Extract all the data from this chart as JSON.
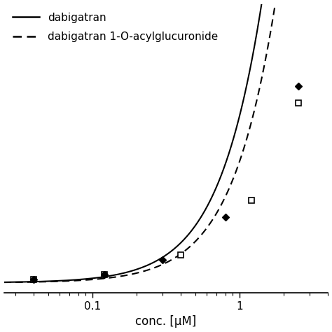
{
  "title": "",
  "xlabel": "conc. [μM]",
  "ylabel": "",
  "legend_solid": "dabigatran",
  "legend_dashed": "dabigatran 1-O-acylglucuronide",
  "Vmax_solid": 25.0,
  "Km_solid": 18.0,
  "n_solid": 1.6,
  "Vmax_dashed": 22.0,
  "Km_dashed": 22.0,
  "n_dashed": 1.6,
  "solid_marker_x": [
    0.04,
    0.12,
    0.3,
    0.8,
    2.5
  ],
  "solid_marker_y": [
    0.025,
    0.065,
    0.18,
    0.52,
    1.55
  ],
  "dashed_marker_x": [
    0.04,
    0.12,
    0.4,
    1.2,
    2.5
  ],
  "dashed_marker_y": [
    0.025,
    0.065,
    0.22,
    0.65,
    1.42
  ],
  "xlim_log": [
    -1.6,
    0.6
  ],
  "ylim": [
    -0.08,
    2.2
  ],
  "x_min": 0.025,
  "x_max": 4.0,
  "line_color": "#000000",
  "background_color": "#ffffff",
  "legend_fontsize": 11,
  "label_fontsize": 12
}
